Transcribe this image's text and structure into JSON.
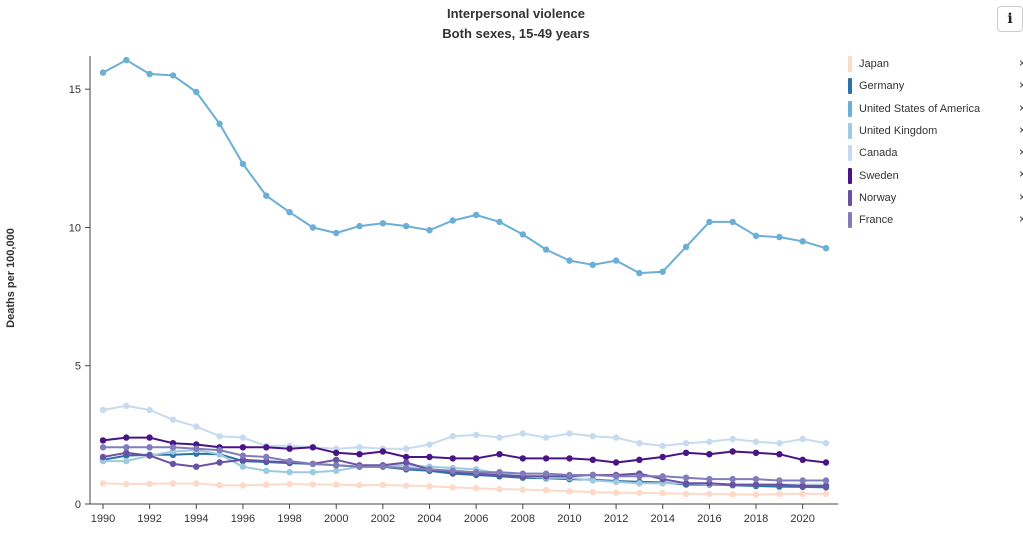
{
  "title": "Interpersonal violence",
  "subtitle": "Both sexes, 15-49 years",
  "info_icon": "info-icon",
  "chart_data": {
    "type": "line",
    "title": "Interpersonal violence",
    "subtitle": "Both sexes, 15-49 years",
    "xlabel": "",
    "ylabel": "Deaths per 100,000",
    "x": [
      1990,
      1991,
      1992,
      1993,
      1994,
      1995,
      1996,
      1997,
      1998,
      1999,
      2000,
      2001,
      2002,
      2003,
      2004,
      2005,
      2006,
      2007,
      2008,
      2009,
      2010,
      2011,
      2012,
      2013,
      2014,
      2015,
      2016,
      2017,
      2018,
      2019,
      2020,
      2021
    ],
    "xticks": [
      1990,
      1992,
      1994,
      1996,
      1998,
      2000,
      2002,
      2004,
      2006,
      2008,
      2010,
      2012,
      2014,
      2016,
      2018,
      2020
    ],
    "xlim": [
      1990,
      2021
    ],
    "yticks": [
      0,
      5,
      10,
      15
    ],
    "ylim": [
      0,
      16.2
    ],
    "grid": false,
    "legend_position": "right",
    "series": [
      {
        "name": "Japan",
        "color": "#fdd9c8",
        "values": [
          0.75,
          0.72,
          0.73,
          0.74,
          0.74,
          0.68,
          0.67,
          0.7,
          0.72,
          0.71,
          0.7,
          0.68,
          0.69,
          0.66,
          0.64,
          0.6,
          0.57,
          0.54,
          0.52,
          0.5,
          0.46,
          0.43,
          0.41,
          0.4,
          0.39,
          0.37,
          0.36,
          0.35,
          0.34,
          0.36,
          0.37,
          0.36
        ]
      },
      {
        "name": "Germany",
        "color": "#2c72aa",
        "values": [
          1.6,
          1.75,
          1.78,
          1.78,
          1.82,
          1.8,
          1.55,
          1.52,
          1.48,
          1.45,
          1.4,
          1.35,
          1.35,
          1.25,
          1.2,
          1.1,
          1.05,
          1.0,
          0.95,
          0.93,
          0.9,
          0.88,
          0.83,
          0.8,
          0.78,
          0.7,
          0.7,
          0.68,
          0.65,
          0.63,
          0.62,
          0.6
        ]
      },
      {
        "name": "United States of America",
        "color": "#6baed6",
        "values": [
          15.6,
          16.05,
          15.55,
          15.5,
          14.9,
          13.75,
          12.3,
          11.15,
          10.55,
          10.0,
          9.8,
          10.05,
          10.15,
          10.05,
          9.9,
          10.25,
          10.45,
          10.2,
          9.75,
          9.2,
          8.8,
          8.65,
          8.8,
          8.35,
          8.4,
          9.3,
          10.2,
          10.2,
          9.7,
          9.65,
          9.5,
          9.25
        ]
      },
      {
        "name": "United Kingdom",
        "color": "#9ecae1",
        "values": [
          1.55,
          1.55,
          1.75,
          1.9,
          1.95,
          1.8,
          1.35,
          1.2,
          1.15,
          1.15,
          1.2,
          1.35,
          1.4,
          1.4,
          1.35,
          1.3,
          1.25,
          1.1,
          1.0,
          0.95,
          0.95,
          0.85,
          0.8,
          0.75,
          0.75,
          0.75,
          0.72,
          0.7,
          0.7,
          0.7,
          0.7,
          0.7
        ]
      },
      {
        "name": "Canada",
        "color": "#c6dbef",
        "values": [
          3.4,
          3.55,
          3.4,
          3.05,
          2.8,
          2.45,
          2.4,
          2.1,
          2.1,
          2.05,
          2.0,
          2.05,
          2.0,
          2.0,
          2.15,
          2.45,
          2.5,
          2.4,
          2.55,
          2.4,
          2.55,
          2.45,
          2.4,
          2.2,
          2.1,
          2.2,
          2.25,
          2.35,
          2.25,
          2.2,
          2.35,
          2.2
        ]
      },
      {
        "name": "Sweden",
        "color": "#4a1486",
        "values": [
          2.3,
          2.4,
          2.4,
          2.2,
          2.15,
          2.05,
          2.05,
          2.05,
          2.0,
          2.05,
          1.85,
          1.8,
          1.9,
          1.7,
          1.7,
          1.65,
          1.65,
          1.8,
          1.65,
          1.65,
          1.65,
          1.6,
          1.5,
          1.6,
          1.7,
          1.85,
          1.8,
          1.9,
          1.85,
          1.8,
          1.6,
          1.5
        ]
      },
      {
        "name": "Norway",
        "color": "#6a51a3",
        "values": [
          1.7,
          1.85,
          1.75,
          1.45,
          1.35,
          1.5,
          1.6,
          1.55,
          1.5,
          1.45,
          1.6,
          1.4,
          1.4,
          1.5,
          1.25,
          1.15,
          1.1,
          1.05,
          1.0,
          1.0,
          1.0,
          1.05,
          1.05,
          1.1,
          0.9,
          0.75,
          0.75,
          0.7,
          0.7,
          0.7,
          0.65,
          0.65
        ]
      },
      {
        "name": "France",
        "color": "#807dba",
        "values": [
          2.05,
          2.05,
          2.05,
          2.05,
          2.0,
          1.95,
          1.75,
          1.7,
          1.55,
          1.45,
          1.4,
          1.35,
          1.35,
          1.3,
          1.25,
          1.2,
          1.15,
          1.15,
          1.1,
          1.1,
          1.05,
          1.05,
          1.0,
          1.0,
          1.0,
          0.95,
          0.9,
          0.9,
          0.9,
          0.85,
          0.85,
          0.85
        ]
      }
    ]
  }
}
